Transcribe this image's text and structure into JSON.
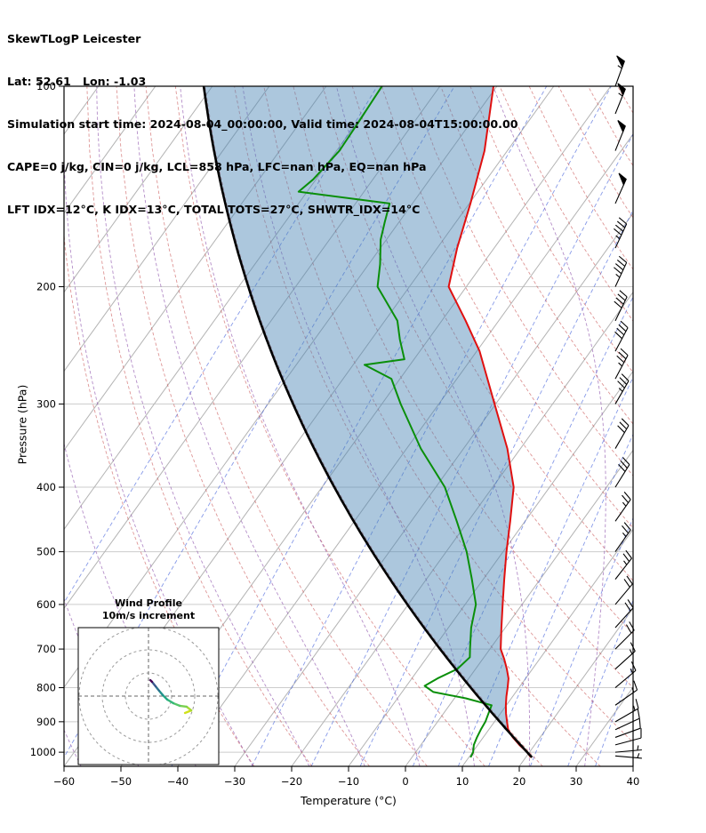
{
  "header": {
    "line1": "SkewTLogP Leicester",
    "line2": "Lat: 52.61   Lon: -1.03",
    "line3": "Simulation start time: 2024-08-04_00:00:00, Valid time: 2024-08-04T15:00:00.00",
    "line4": "CAPE=0 j/kg, CIN=0 j/kg, LCL=858 hPa, LFC=nan hPa, EQ=nan hPa",
    "line5": "LFT IDX=12°C, K IDX=13°C, TOTAL TOTS=27°C, SHWTR_IDX=14°C"
  },
  "chart_data": {
    "type": "skewt_logp",
    "title": "SkewTLogP Leicester",
    "location": {
      "lat": 52.61,
      "lon": -1.03
    },
    "simulation_start": "2024-08-04_00:00:00",
    "valid_time": "2024-08-04T15:00:00.00",
    "indices": {
      "CAPE": "0 j/kg",
      "CIN": "0 j/kg",
      "LCL": "858 hPa",
      "LFC": "nan hPa",
      "EQ": "nan hPa",
      "LFT_IDX": "12°C",
      "K_IDX": "13°C",
      "TOTAL_TOTS": "27°C",
      "SHWTR_IDX": "14°C"
    },
    "axes": {
      "x": {
        "label": "Temperature (°C)",
        "min": -60,
        "max": 40,
        "ticks": [
          -60,
          -50,
          -40,
          -30,
          -20,
          -10,
          0,
          10,
          20,
          30,
          40
        ]
      },
      "y": {
        "label": "Pressure (hPa)",
        "min": 100,
        "max": 1050,
        "scale": "log",
        "ticks": [
          100,
          200,
          300,
          400,
          500,
          600,
          700,
          800,
          900,
          1000
        ]
      }
    },
    "skew_slope": 0.72,
    "gridlines": {
      "isotherms": {
        "start": -150,
        "end": 40,
        "step": 10
      },
      "dry_adiabats": {
        "start": -30,
        "end": 160,
        "step": 10
      },
      "moist_adiabats": {
        "start": -60,
        "end": 30,
        "step": 10
      },
      "mixing_ratio_g_kg": [
        0.001,
        0.01,
        0.1,
        0.4,
        1,
        2,
        4,
        7,
        10,
        16,
        24,
        32
      ]
    },
    "sounding": {
      "pressure": [
        1018,
        1000,
        975,
        950,
        925,
        900,
        875,
        850,
        825,
        800,
        775,
        750,
        725,
        700,
        650,
        600,
        550,
        500,
        450,
        400,
        350,
        300,
        250,
        225,
        200,
        175,
        150,
        125,
        100
      ],
      "temperature": [
        20.9,
        19.6,
        17.3,
        15.2,
        13.4,
        12.2,
        11.0,
        9.9,
        8.9,
        8.0,
        7.0,
        5.5,
        3.8,
        1.9,
        -0.7,
        -3.4,
        -6.3,
        -9.4,
        -12.6,
        -16.3,
        -22.3,
        -30.2,
        -39.5,
        -45.8,
        -53.1,
        -56.5,
        -59.8,
        -64.0,
        -70.6
      ],
      "dewpoint_pressure": [
        1018,
        1000,
        975,
        950,
        925,
        900,
        875,
        850,
        830,
        812,
        795,
        775,
        750,
        720,
        700,
        650,
        600,
        550,
        500,
        450,
        400,
        350,
        300,
        275,
        262,
        257,
        240,
        225,
        200,
        185,
        170,
        160,
        150,
        144,
        138,
        125,
        112,
        100
      ],
      "dewpoint": [
        10.3,
        10.1,
        9.3,
        8.9,
        8.6,
        8.4,
        7.9,
        7.4,
        2.0,
        -4.5,
        -6.8,
        -5.5,
        -3.2,
        -2.5,
        -3.5,
        -6.0,
        -8.1,
        -12.0,
        -16.4,
        -22.0,
        -28.4,
        -37.5,
        -46.7,
        -51.5,
        -58.0,
        -51.7,
        -55.0,
        -57.8,
        -65.6,
        -68.0,
        -71.0,
        -72.5,
        -74.0,
        -91.5,
        -90.5,
        -89.5,
        -89.8,
        -90.2
      ]
    },
    "parcel": {
      "type": "dry_adiabat",
      "p0": 1018,
      "t0": 21.1
    },
    "winds": [
      {
        "p": 1013,
        "spd": 5,
        "dir": 95
      },
      {
        "p": 1000,
        "spd": 8,
        "dir": 85
      },
      {
        "p": 975,
        "spd": 10,
        "dir": 75
      },
      {
        "p": 950,
        "spd": 10,
        "dir": 70
      },
      {
        "p": 925,
        "spd": 12,
        "dir": 65
      },
      {
        "p": 900,
        "spd": 15,
        "dir": 60
      },
      {
        "p": 850,
        "spd": 15,
        "dir": 55
      },
      {
        "p": 800,
        "spd": 15,
        "dir": 50
      },
      {
        "p": 750,
        "spd": 18,
        "dir": 48
      },
      {
        "p": 700,
        "spd": 20,
        "dir": 45
      },
      {
        "p": 650,
        "spd": 20,
        "dir": 42
      },
      {
        "p": 600,
        "spd": 22,
        "dir": 40
      },
      {
        "p": 550,
        "spd": 25,
        "dir": 38
      },
      {
        "p": 500,
        "spd": 25,
        "dir": 35
      },
      {
        "p": 450,
        "spd": 28,
        "dir": 35
      },
      {
        "p": 400,
        "spd": 30,
        "dir": 32
      },
      {
        "p": 350,
        "spd": 32,
        "dir": 30
      },
      {
        "p": 300,
        "spd": 35,
        "dir": 30
      },
      {
        "p": 275,
        "spd": 38,
        "dir": 28
      },
      {
        "p": 250,
        "spd": 40,
        "dir": 28
      },
      {
        "p": 225,
        "spd": 42,
        "dir": 26
      },
      {
        "p": 200,
        "spd": 45,
        "dir": 25
      },
      {
        "p": 175,
        "spd": 48,
        "dir": 25
      },
      {
        "p": 150,
        "spd": 50,
        "dir": 24
      },
      {
        "p": 125,
        "spd": 50,
        "dir": 22
      },
      {
        "p": 110,
        "spd": 55,
        "dir": 22
      },
      {
        "p": 100,
        "spd": 55,
        "dir": 20
      }
    ],
    "hodograph": {
      "title": "Wind Profile",
      "subtitle": "10m/s increment",
      "ring_interval_ms": 10,
      "rings_ms": [
        10,
        20,
        30
      ],
      "trace_uv_ms": [
        [
          15.8,
          -7.3
        ],
        [
          18.5,
          -6.2
        ],
        [
          16.5,
          -4.6
        ],
        [
          13.5,
          -4.2
        ],
        [
          10.8,
          -3.1
        ],
        [
          8.1,
          -1.5
        ],
        [
          6.2,
          0.4
        ],
        [
          4.6,
          2.3
        ],
        [
          3.1,
          4.2
        ],
        [
          1.5,
          6.2
        ],
        [
          0.8,
          6.9
        ]
      ],
      "trace_colors": [
        "#d0e11b",
        "#a8db34",
        "#7ad151",
        "#54c568",
        "#35b779",
        "#22a884",
        "#21918c",
        "#2c728e",
        "#39568c",
        "#440154"
      ]
    },
    "colors": {
      "temperature": "#e01010",
      "dewpoint": "#0a8f0a",
      "parcel": "#000000",
      "shade": "rgba(70,130,180,0.45)",
      "isotherm": "#b3b3b3",
      "pressure_grid": "#cccccc",
      "dry_adiabat": "rgba(200,80,80,0.6)",
      "moist_adiabat": "rgba(140,80,170,0.65)",
      "mixing_ratio": "rgba(70,100,220,0.65)"
    }
  }
}
